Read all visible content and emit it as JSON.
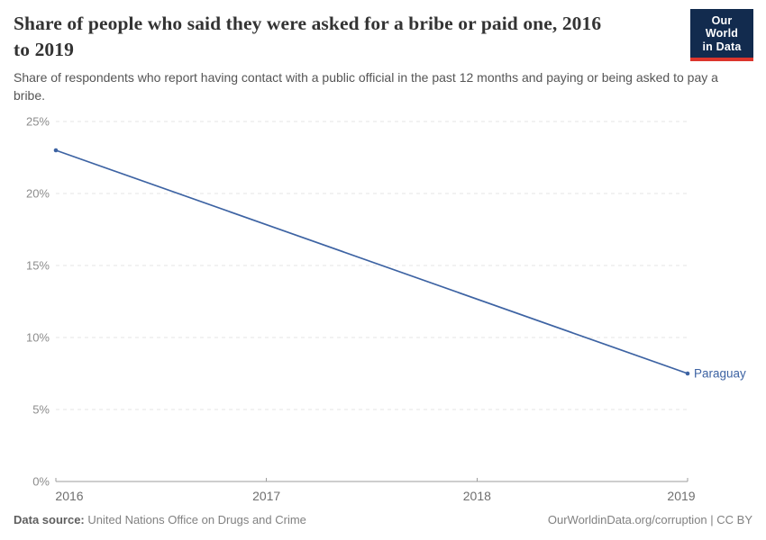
{
  "header": {
    "title": "Share of people who said they were asked for a bribe or paid one, 2016 to 2019",
    "subtitle": "Share of respondents who report having contact with a public official in the past 12 months and paying or being asked to pay a bribe.",
    "logo": {
      "line1": "Our World",
      "line2": "in Data",
      "bg": "#122b4e",
      "accent": "#dc352c"
    }
  },
  "chart_data": {
    "type": "line",
    "title": "Share of people who said they were asked for a bribe or paid one, 2016 to 2019",
    "series": [
      {
        "name": "Paraguay",
        "color": "#3d63a3",
        "x": [
          2016,
          2019
        ],
        "values": [
          23,
          7.5
        ]
      }
    ],
    "x_ticks": [
      2016,
      2017,
      2018,
      2019
    ],
    "y_ticks": [
      0,
      5,
      10,
      15,
      20,
      25
    ],
    "y_tick_suffix": "%",
    "xlim": [
      2016,
      2019
    ],
    "ylim": [
      0,
      25
    ],
    "grid": "horizontal-dashed",
    "legend": "end-of-line-label",
    "colors": {
      "gridline": "#e4e4e4",
      "axis": "#9e9e9e",
      "y_tick_text": "#8c8c8c",
      "x_tick_text": "#6f6f6f"
    }
  },
  "footer": {
    "source_label": "Data source:",
    "source_value": "United Nations Office on Drugs and Crime",
    "credit": "OurWorldinData.org/corruption | CC BY"
  }
}
